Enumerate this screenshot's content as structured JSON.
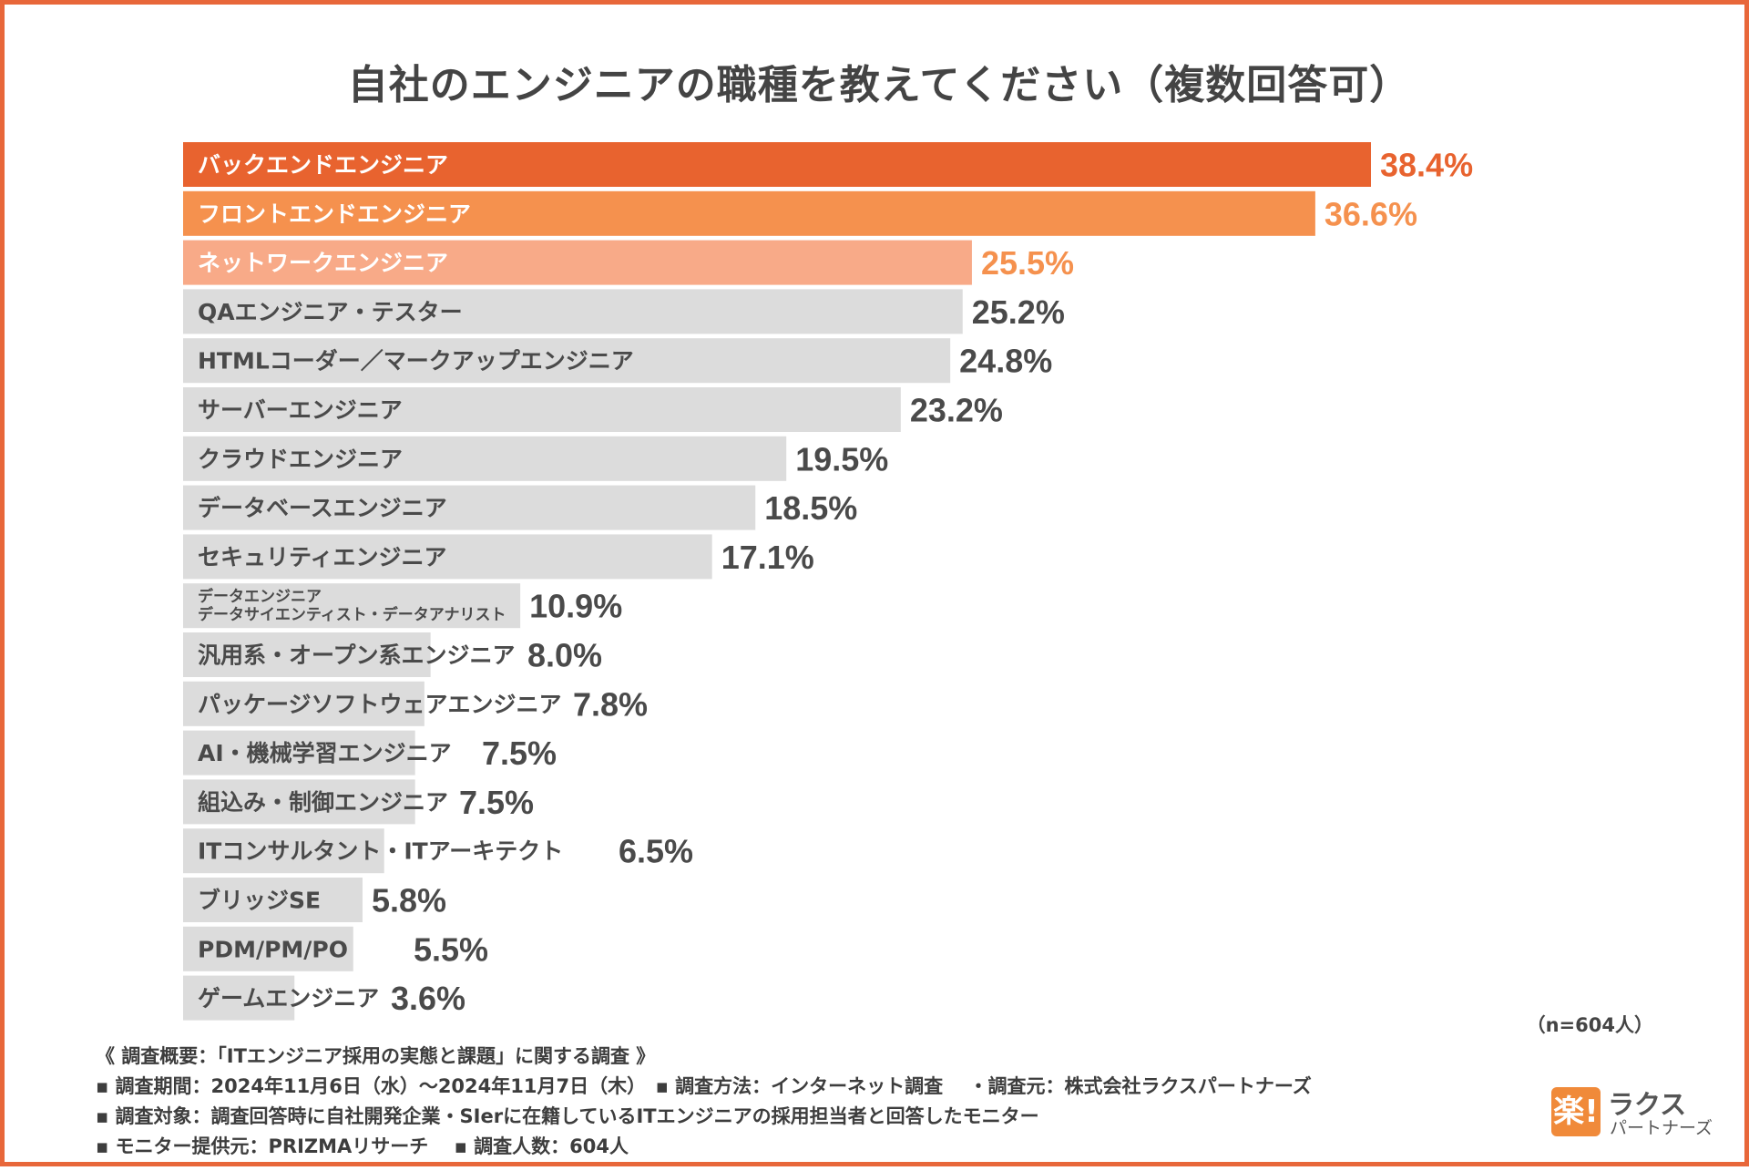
{
  "chart_data": {
    "type": "bar",
    "orientation": "horizontal",
    "title": "自社のエンジニアの職種を教えてください（複数回答可）",
    "categories": [
      [
        "バックエンドエンジニア"
      ],
      [
        "フロントエンドエンジニア"
      ],
      [
        "ネットワークエンジニア"
      ],
      [
        "QAエンジニア・テスター"
      ],
      [
        "HTMLコーダー／マークアップエンジニア"
      ],
      [
        "サーバーエンジニア"
      ],
      [
        "クラウドエンジニア"
      ],
      [
        "データベースエンジニア"
      ],
      [
        "セキュリティエンジニア"
      ],
      [
        "データエンジニア",
        "データサイエンティスト・データアナリスト"
      ],
      [
        "汎用系・オープン系エンジニア"
      ],
      [
        "パッケージソフトウェアエンジニア"
      ],
      [
        "AI・機械学習エンジニア"
      ],
      [
        "組込み・制御エンジニア"
      ],
      [
        "ITコンサルタント・ITアーキテクト"
      ],
      [
        "ブリッジSE"
      ],
      [
        "PDM/PM/PO"
      ],
      [
        "ゲームエンジニア"
      ]
    ],
    "values": [
      38.4,
      36.6,
      25.5,
      25.2,
      24.8,
      23.2,
      19.5,
      18.5,
      17.1,
      10.9,
      8.0,
      7.8,
      7.5,
      7.5,
      6.5,
      5.8,
      5.5,
      3.6
    ],
    "value_labels": [
      "38.4%",
      "36.6%",
      "25.5%",
      "25.2%",
      "24.8%",
      "23.2%",
      "19.5%",
      "18.5%",
      "17.1%",
      "10.9%",
      "8.0%",
      "7.8%",
      "7.5%",
      "7.5%",
      "6.5%",
      "5.8%",
      "5.5%",
      "3.6%"
    ],
    "unit": "%",
    "xlim": [
      0,
      38.4
    ],
    "highlight_colors": [
      "#e8632f",
      "#f5914e",
      "#f8aa88"
    ],
    "highlight_value_colors": [
      "#e8632f",
      "#f5914e",
      "#f5914e"
    ],
    "default_bar_color": "#dcdcdc",
    "default_value_color": "#4a4a4a",
    "sample_size": "（n=604人）"
  },
  "notes": [
    "《 調査概要：「ITエンジニア採用の実態と課題」に関する調査 》",
    "▪ 調査期間：2024年11月6日（水）〜2024年11月7日（木）　▪ 調査方法：インターネット調査　 ・調査元：株式会社ラクスパートナーズ",
    "▪ 調査対象：調査回答時に自社開発企業・SIerに在籍しているITエンジニアの採用担当者と回答したモニター",
    "▪ モニター提供元：PRIZMAリサーチ　 ▪ 調査人数：604人"
  ],
  "logo": {
    "mark": "楽!",
    "name": "ラクス",
    "sub": "パートナーズ"
  }
}
